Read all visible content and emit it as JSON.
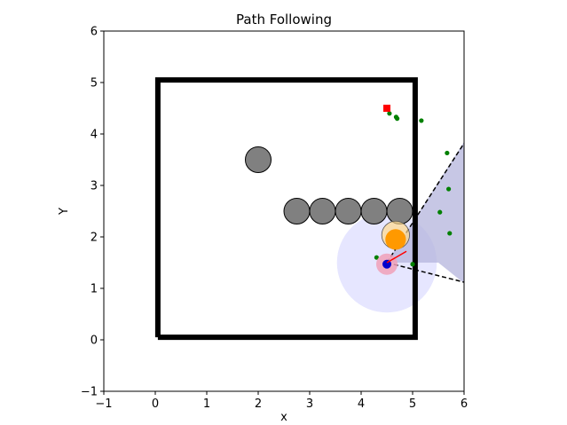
{
  "chart_data": {
    "type": "scatter",
    "title": "Path Following",
    "xlabel": "x",
    "ylabel": "Y",
    "xlim": [
      -1,
      6
    ],
    "ylim": [
      -1,
      6
    ],
    "xticks": [
      -1,
      0,
      1,
      2,
      3,
      4,
      5,
      6
    ],
    "yticks": [
      -1,
      0,
      1,
      2,
      3,
      4,
      5,
      6
    ],
    "xtick_labels": [
      "−1",
      "0",
      "1",
      "2",
      "3",
      "4",
      "5",
      "6"
    ],
    "ytick_labels": [
      "−1",
      "0",
      "1",
      "2",
      "3",
      "4",
      "5",
      "6"
    ],
    "grid": false,
    "boundary": {
      "x": [
        0.05,
        5.05,
        5.05,
        0.05,
        0.05
      ],
      "y": [
        0.05,
        0.05,
        5.05,
        5.05,
        0.05
      ],
      "color": "#000000"
    },
    "obstacles": [
      {
        "x": 2.0,
        "y": 3.5,
        "r": 0.25
      },
      {
        "x": 2.75,
        "y": 2.5,
        "r": 0.25
      },
      {
        "x": 3.25,
        "y": 2.5,
        "r": 0.25
      },
      {
        "x": 3.75,
        "y": 2.5,
        "r": 0.25
      },
      {
        "x": 4.25,
        "y": 2.5,
        "r": 0.25
      },
      {
        "x": 4.75,
        "y": 2.5,
        "r": 0.25
      }
    ],
    "obstacle_color": "#808080",
    "sensing_region": {
      "x": 4.5,
      "y": 1.5,
      "r": 0.97,
      "color": "#e6e6ff"
    },
    "fov_polygon": {
      "x": [
        4.5,
        6.0,
        6.0,
        5.5
      ],
      "y": [
        1.5,
        3.85,
        1.1,
        1.5
      ],
      "color": "#b4b4dc"
    },
    "fov_edges": [
      {
        "x": [
          4.5,
          6.0
        ],
        "y": [
          1.5,
          3.82
        ]
      },
      {
        "x": [
          4.5,
          6.0
        ],
        "y": [
          1.5,
          1.12
        ]
      }
    ],
    "goal": {
      "x": 4.5,
      "y": 4.5,
      "color": "#ff0000"
    },
    "path_points": {
      "x": [
        4.55,
        4.68,
        4.7,
        5.17,
        5.67,
        5.7,
        5.53,
        5.72,
        5.0,
        4.3
      ],
      "y": [
        4.4,
        4.33,
        4.3,
        4.26,
        3.63,
        2.93,
        2.48,
        2.07,
        1.47,
        1.6
      ],
      "color": "#008000"
    },
    "agent": {
      "x": 4.5,
      "y": 1.47,
      "color": "#0000cc",
      "halo_color": "#f0a0b8"
    },
    "dynamic_obstacle": {
      "x": 4.67,
      "y": 1.95,
      "r": 0.2,
      "color": "#ff9900",
      "halo_color": "#ffd98c"
    },
    "heading": {
      "x": [
        4.5,
        4.88
      ],
      "y": [
        1.5,
        1.72
      ],
      "color": "#ff0000"
    }
  }
}
